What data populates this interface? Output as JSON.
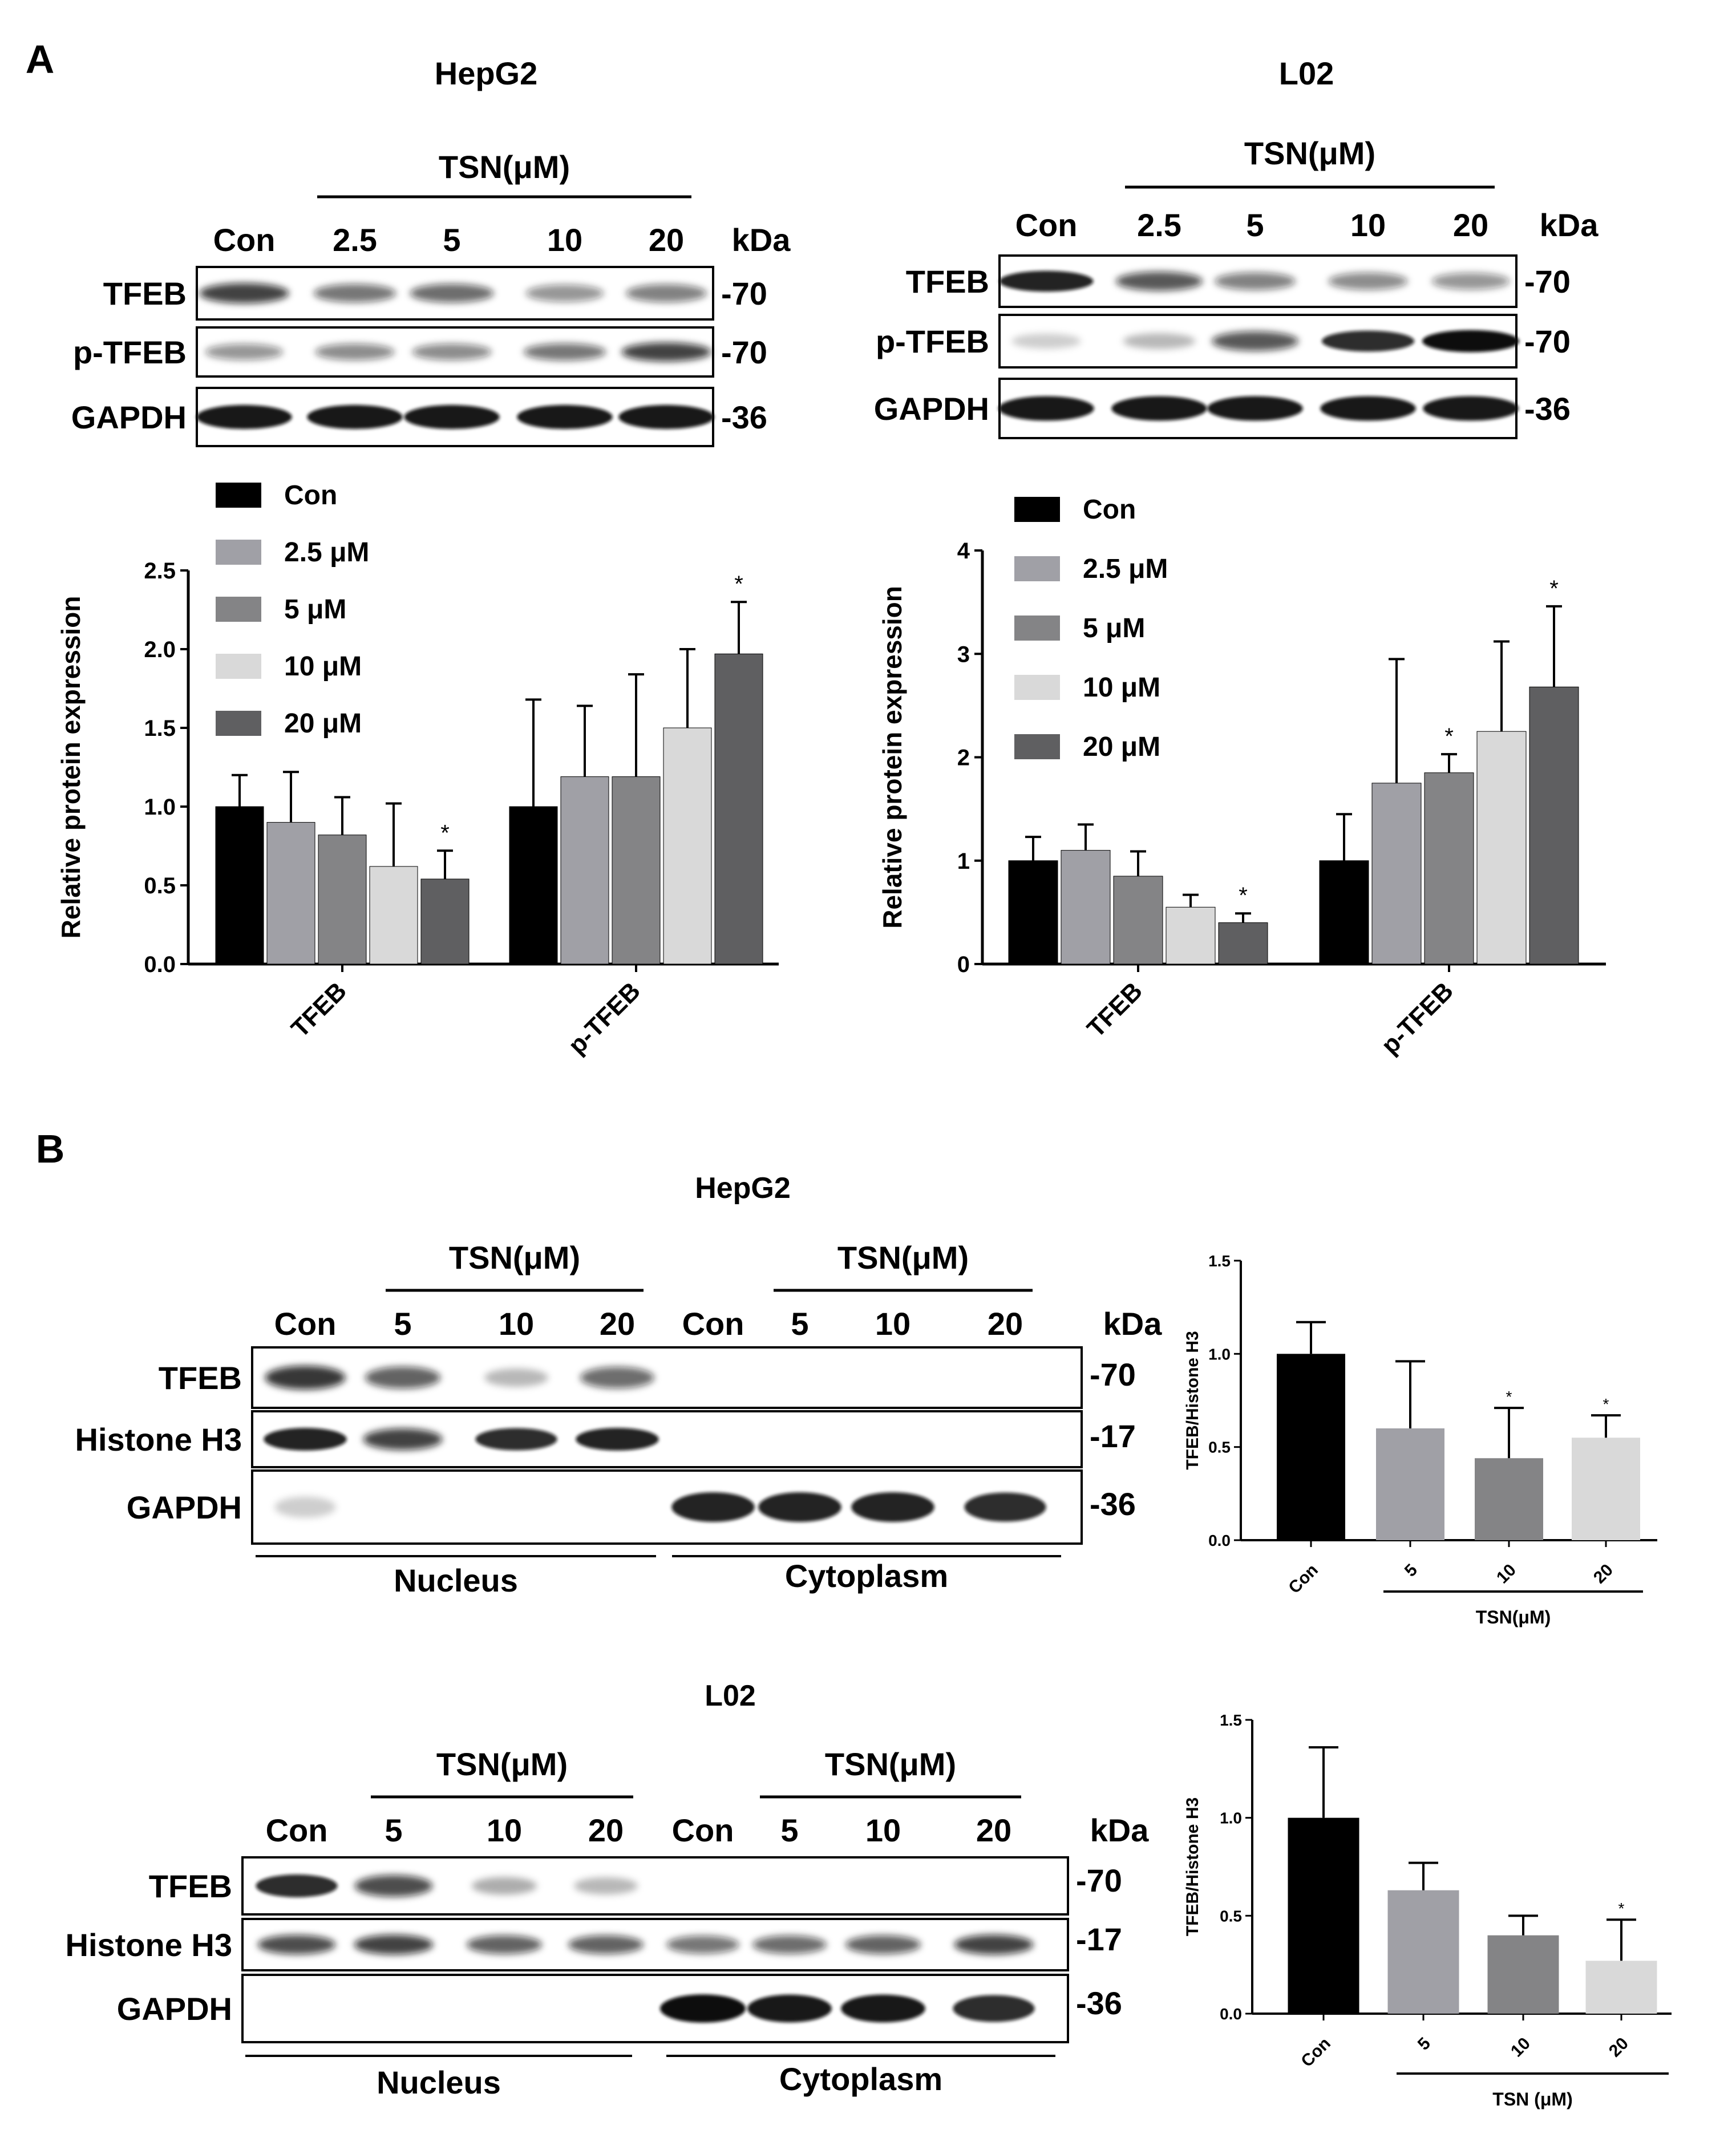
{
  "panel_a": {
    "letter": "A",
    "hepg2": {
      "cell_line": "HepG2",
      "treatment": "TSN(μM)",
      "lanes": [
        "Con",
        "2.5",
        "5",
        "10",
        "20"
      ],
      "kda_header": "kDa",
      "blots": [
        {
          "label": "TFEB",
          "kda": "-70"
        },
        {
          "label": "p-TFEB",
          "kda": "-70"
        },
        {
          "label": "GAPDH",
          "kda": "-36"
        }
      ],
      "band_intensity": [
        [
          0.75,
          0.5,
          0.55,
          0.35,
          0.45
        ],
        [
          0.35,
          0.4,
          0.4,
          0.5,
          0.75
        ],
        [
          0.95,
          0.95,
          0.95,
          0.95,
          0.95
        ]
      ]
    },
    "l02": {
      "cell_line": "L02",
      "treatment": "TSN(μM)",
      "lanes": [
        "Con",
        "2.5",
        "5",
        "10",
        "20"
      ],
      "kda_header": "kDa",
      "blots": [
        {
          "label": "TFEB",
          "kda": "-70"
        },
        {
          "label": "p-TFEB",
          "kda": "-70"
        },
        {
          "label": "GAPDH",
          "kda": "-36"
        }
      ],
      "band_intensity": [
        [
          0.9,
          0.65,
          0.45,
          0.4,
          0.35
        ],
        [
          0.05,
          0.15,
          0.65,
          0.85,
          1.0
        ],
        [
          0.95,
          0.95,
          0.95,
          0.95,
          0.95
        ]
      ]
    }
  },
  "panel_b": {
    "letter": "B",
    "hepg2": {
      "cell_line": "HepG2",
      "treatment": "TSN(μM)",
      "lanes": [
        "Con",
        "5",
        "10",
        "20",
        "Con",
        "5",
        "10",
        "20"
      ],
      "kda_header": "kDa",
      "blots": [
        {
          "label": "TFEB",
          "kda": "-70"
        },
        {
          "label": "Histone H3",
          "kda": "-17"
        },
        {
          "label": "GAPDH",
          "kda": "-36"
        }
      ],
      "band_intensity": [
        [
          0.8,
          0.6,
          0.15,
          0.55,
          0,
          0,
          0,
          0
        ],
        [
          0.9,
          0.75,
          0.85,
          0.9,
          0,
          0,
          0,
          0
        ],
        [
          0.05,
          0,
          0,
          0,
          0.9,
          0.9,
          0.9,
          0.85
        ]
      ],
      "fractions": [
        "Nucleus",
        "Cytoplasm"
      ]
    },
    "l02": {
      "cell_line": "L02",
      "treatment": "TSN(μM)",
      "lanes": [
        "Con",
        "5",
        "10",
        "20",
        "Con",
        "5",
        "10",
        "20"
      ],
      "kda_header": "kDa",
      "blots": [
        {
          "label": "TFEB",
          "kda": "-70"
        },
        {
          "label": "Histone H3",
          "kda": "-17"
        },
        {
          "label": "GAPDH",
          "kda": "-36"
        }
      ],
      "band_intensity": [
        [
          0.85,
          0.7,
          0.2,
          0.15,
          0,
          0,
          0,
          0
        ],
        [
          0.7,
          0.75,
          0.6,
          0.6,
          0.5,
          0.55,
          0.6,
          0.75
        ],
        [
          0,
          0,
          0,
          0,
          1.0,
          0.95,
          0.95,
          0.85
        ]
      ],
      "fractions": [
        "Nucleus",
        "Cytoplasm"
      ]
    }
  },
  "colors": {
    "con": "#000000",
    "c2_5": "#a0a0a6",
    "c5": "#848486",
    "c10": "#d9d9d9",
    "c20": "#5f5f61"
  },
  "chart_data": [
    {
      "type": "bar",
      "panel": "A-HepG2",
      "categories": [
        "TFEB",
        "p-TFEB"
      ],
      "ylabel": "Relative protein expression",
      "ylim": [
        0,
        2.5
      ],
      "yticks": [
        "0.0",
        "0.5",
        "1.0",
        "1.5",
        "2.0",
        "2.5"
      ],
      "legend": "top-left",
      "series": [
        {
          "name": "Con",
          "values": [
            1.0,
            1.0
          ],
          "errors": [
            0.2,
            0.68
          ]
        },
        {
          "name": "2.5 μM",
          "values": [
            0.9,
            1.19
          ],
          "errors": [
            0.32,
            0.45
          ]
        },
        {
          "name": "5 μM",
          "values": [
            0.82,
            1.19
          ],
          "errors": [
            0.24,
            0.65
          ]
        },
        {
          "name": "10 μM",
          "values": [
            0.62,
            1.5
          ],
          "errors": [
            0.4,
            0.5
          ]
        },
        {
          "name": "20 μM",
          "values": [
            0.54,
            1.97
          ],
          "errors": [
            0.18,
            0.33
          ]
        }
      ],
      "significance": [
        [
          false,
          false,
          false,
          false,
          true
        ],
        [
          false,
          false,
          false,
          false,
          true
        ]
      ],
      "sig_mark": "*"
    },
    {
      "type": "bar",
      "panel": "A-L02",
      "categories": [
        "TFEB",
        "p-TFEB"
      ],
      "ylabel": "Relative protein expression",
      "ylim": [
        0,
        4
      ],
      "yticks": [
        "0",
        "1",
        "2",
        "3",
        "4"
      ],
      "legend": "top-left",
      "series": [
        {
          "name": "Con",
          "values": [
            1.0,
            1.0
          ],
          "errors": [
            0.23,
            0.45
          ]
        },
        {
          "name": "2.5 μM",
          "values": [
            1.1,
            1.75
          ],
          "errors": [
            0.25,
            1.2
          ]
        },
        {
          "name": "5 μM",
          "values": [
            0.85,
            1.85
          ],
          "errors": [
            0.24,
            0.18
          ]
        },
        {
          "name": "10 μM",
          "values": [
            0.55,
            2.25
          ],
          "errors": [
            0.12,
            0.87
          ]
        },
        {
          "name": "20 μM",
          "values": [
            0.4,
            2.68
          ],
          "errors": [
            0.09,
            0.78
          ]
        }
      ],
      "significance": [
        [
          false,
          false,
          false,
          false,
          true
        ],
        [
          false,
          false,
          true,
          false,
          true
        ]
      ],
      "sig_mark": "*"
    },
    {
      "type": "bar",
      "panel": "B-HepG2",
      "categories": [
        "Con",
        "5",
        "10",
        "20"
      ],
      "values": [
        1.0,
        0.6,
        0.44,
        0.55
      ],
      "errors": [
        0.17,
        0.36,
        0.27,
        0.12
      ],
      "significance": [
        false,
        false,
        true,
        true
      ],
      "sig_mark": "*",
      "ylabel": "TFEB/Histone H3",
      "xlabel": "TSN(μM)",
      "ylim": [
        0,
        1.5
      ],
      "yticks": [
        "0.0",
        "0.5",
        "1.0",
        "1.5"
      ]
    },
    {
      "type": "bar",
      "panel": "B-L02",
      "categories": [
        "Con",
        "5",
        "10",
        "20"
      ],
      "values": [
        1.0,
        0.63,
        0.4,
        0.27
      ],
      "errors": [
        0.36,
        0.14,
        0.1,
        0.21
      ],
      "significance": [
        false,
        false,
        false,
        true
      ],
      "sig_mark": "*",
      "ylabel": "TFEB/Histone H3",
      "xlabel": "TSN (μM)",
      "ylim": [
        0,
        1.5
      ],
      "yticks": [
        "0.0",
        "0.5",
        "1.0",
        "1.5"
      ]
    }
  ]
}
